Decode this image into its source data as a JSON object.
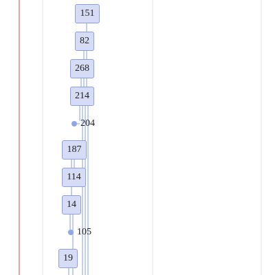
{
  "tree": {
    "nodes": [
      {
        "id": "n151",
        "label": "151",
        "kind": "box"
      },
      {
        "id": "n82",
        "label": "82",
        "kind": "box"
      },
      {
        "id": "n268",
        "label": "268",
        "kind": "box"
      },
      {
        "id": "n214",
        "label": "214",
        "kind": "box"
      },
      {
        "id": "n204",
        "label": "204",
        "kind": "dot"
      },
      {
        "id": "n187",
        "label": "187",
        "kind": "box"
      },
      {
        "id": "n114",
        "label": "114",
        "kind": "box"
      },
      {
        "id": "n14",
        "label": "14",
        "kind": "box"
      },
      {
        "id": "n105",
        "label": "105",
        "kind": "dot"
      },
      {
        "id": "n19",
        "label": "19",
        "kind": "box"
      }
    ]
  },
  "colors": {
    "node_fill": "#d7dcf6",
    "node_border": "#8c9fe6",
    "dot": "#8fa6ee",
    "edge": "#9aaee8",
    "gridline": "#e2e2e2",
    "marker_line": "#e88080"
  }
}
